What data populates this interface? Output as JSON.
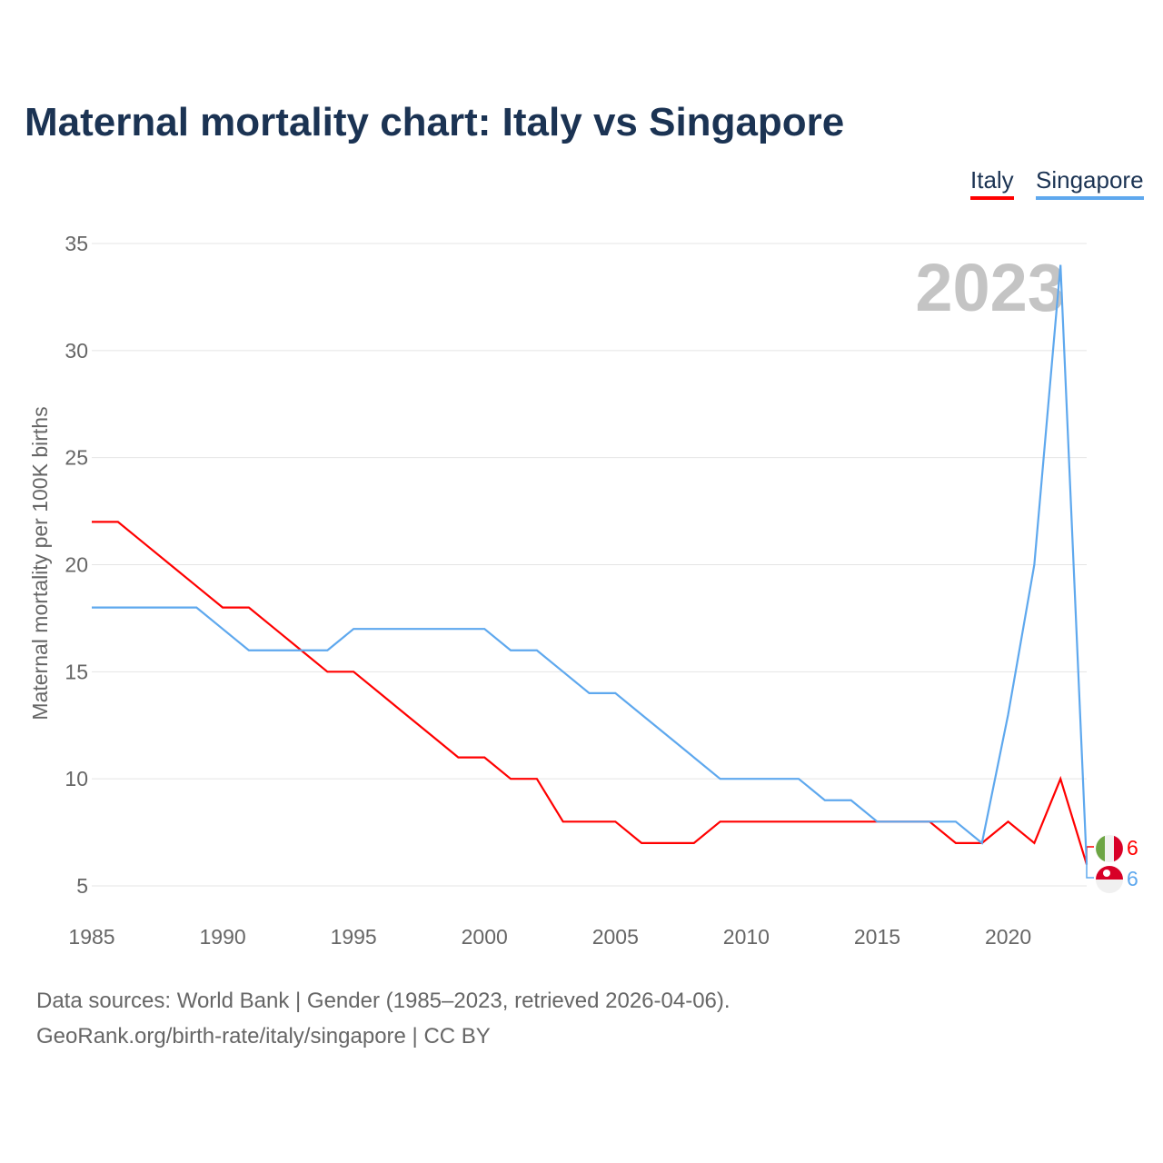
{
  "chart_data": {
    "type": "line",
    "title": "Maternal mortality chart: Italy vs Singapore",
    "ylabel": "Maternal mortality per 100K births",
    "xlabel": "",
    "year_label": "2023",
    "xlim": [
      1985,
      2023
    ],
    "ylim": [
      5,
      35
    ],
    "xticks": [
      "1985",
      "1990",
      "1995",
      "2000",
      "2005",
      "2010",
      "2015",
      "2020"
    ],
    "yticks": [
      "5",
      "10",
      "15",
      "20",
      "25",
      "30",
      "35"
    ],
    "grid": true,
    "legend_position": "top-right",
    "x": [
      1985,
      1986,
      1987,
      1988,
      1989,
      1990,
      1991,
      1992,
      1993,
      1994,
      1995,
      1996,
      1997,
      1998,
      1999,
      2000,
      2001,
      2002,
      2003,
      2004,
      2005,
      2006,
      2007,
      2008,
      2009,
      2010,
      2011,
      2012,
      2013,
      2014,
      2015,
      2016,
      2017,
      2018,
      2019,
      2020,
      2021,
      2022,
      2023
    ],
    "series": [
      {
        "name": "Italy",
        "color": "#ff0000",
        "end_label": "6",
        "values": [
          22,
          22,
          21,
          20,
          19,
          18,
          18,
          17,
          16,
          15,
          15,
          14,
          13,
          12,
          11,
          11,
          10,
          10,
          8,
          8,
          8,
          7,
          7,
          7,
          8,
          8,
          8,
          8,
          8,
          8,
          8,
          8,
          8,
          7,
          7,
          8,
          7,
          10,
          6
        ]
      },
      {
        "name": "Singapore",
        "color": "#5ea8ee",
        "end_label": "6",
        "values": [
          18,
          18,
          18,
          18,
          18,
          17,
          16,
          16,
          16,
          16,
          17,
          17,
          17,
          17,
          17,
          17,
          16,
          16,
          15,
          14,
          14,
          13,
          12,
          11,
          10,
          10,
          10,
          10,
          9,
          9,
          8,
          8,
          8,
          8,
          7,
          13,
          20,
          34,
          6
        ]
      }
    ]
  },
  "footer": {
    "line1": "Data sources: World Bank | Gender (1985–2023, retrieved 2026-04-06).",
    "line2": "GeoRank.org/birth-rate/italy/singapore | CC BY"
  }
}
